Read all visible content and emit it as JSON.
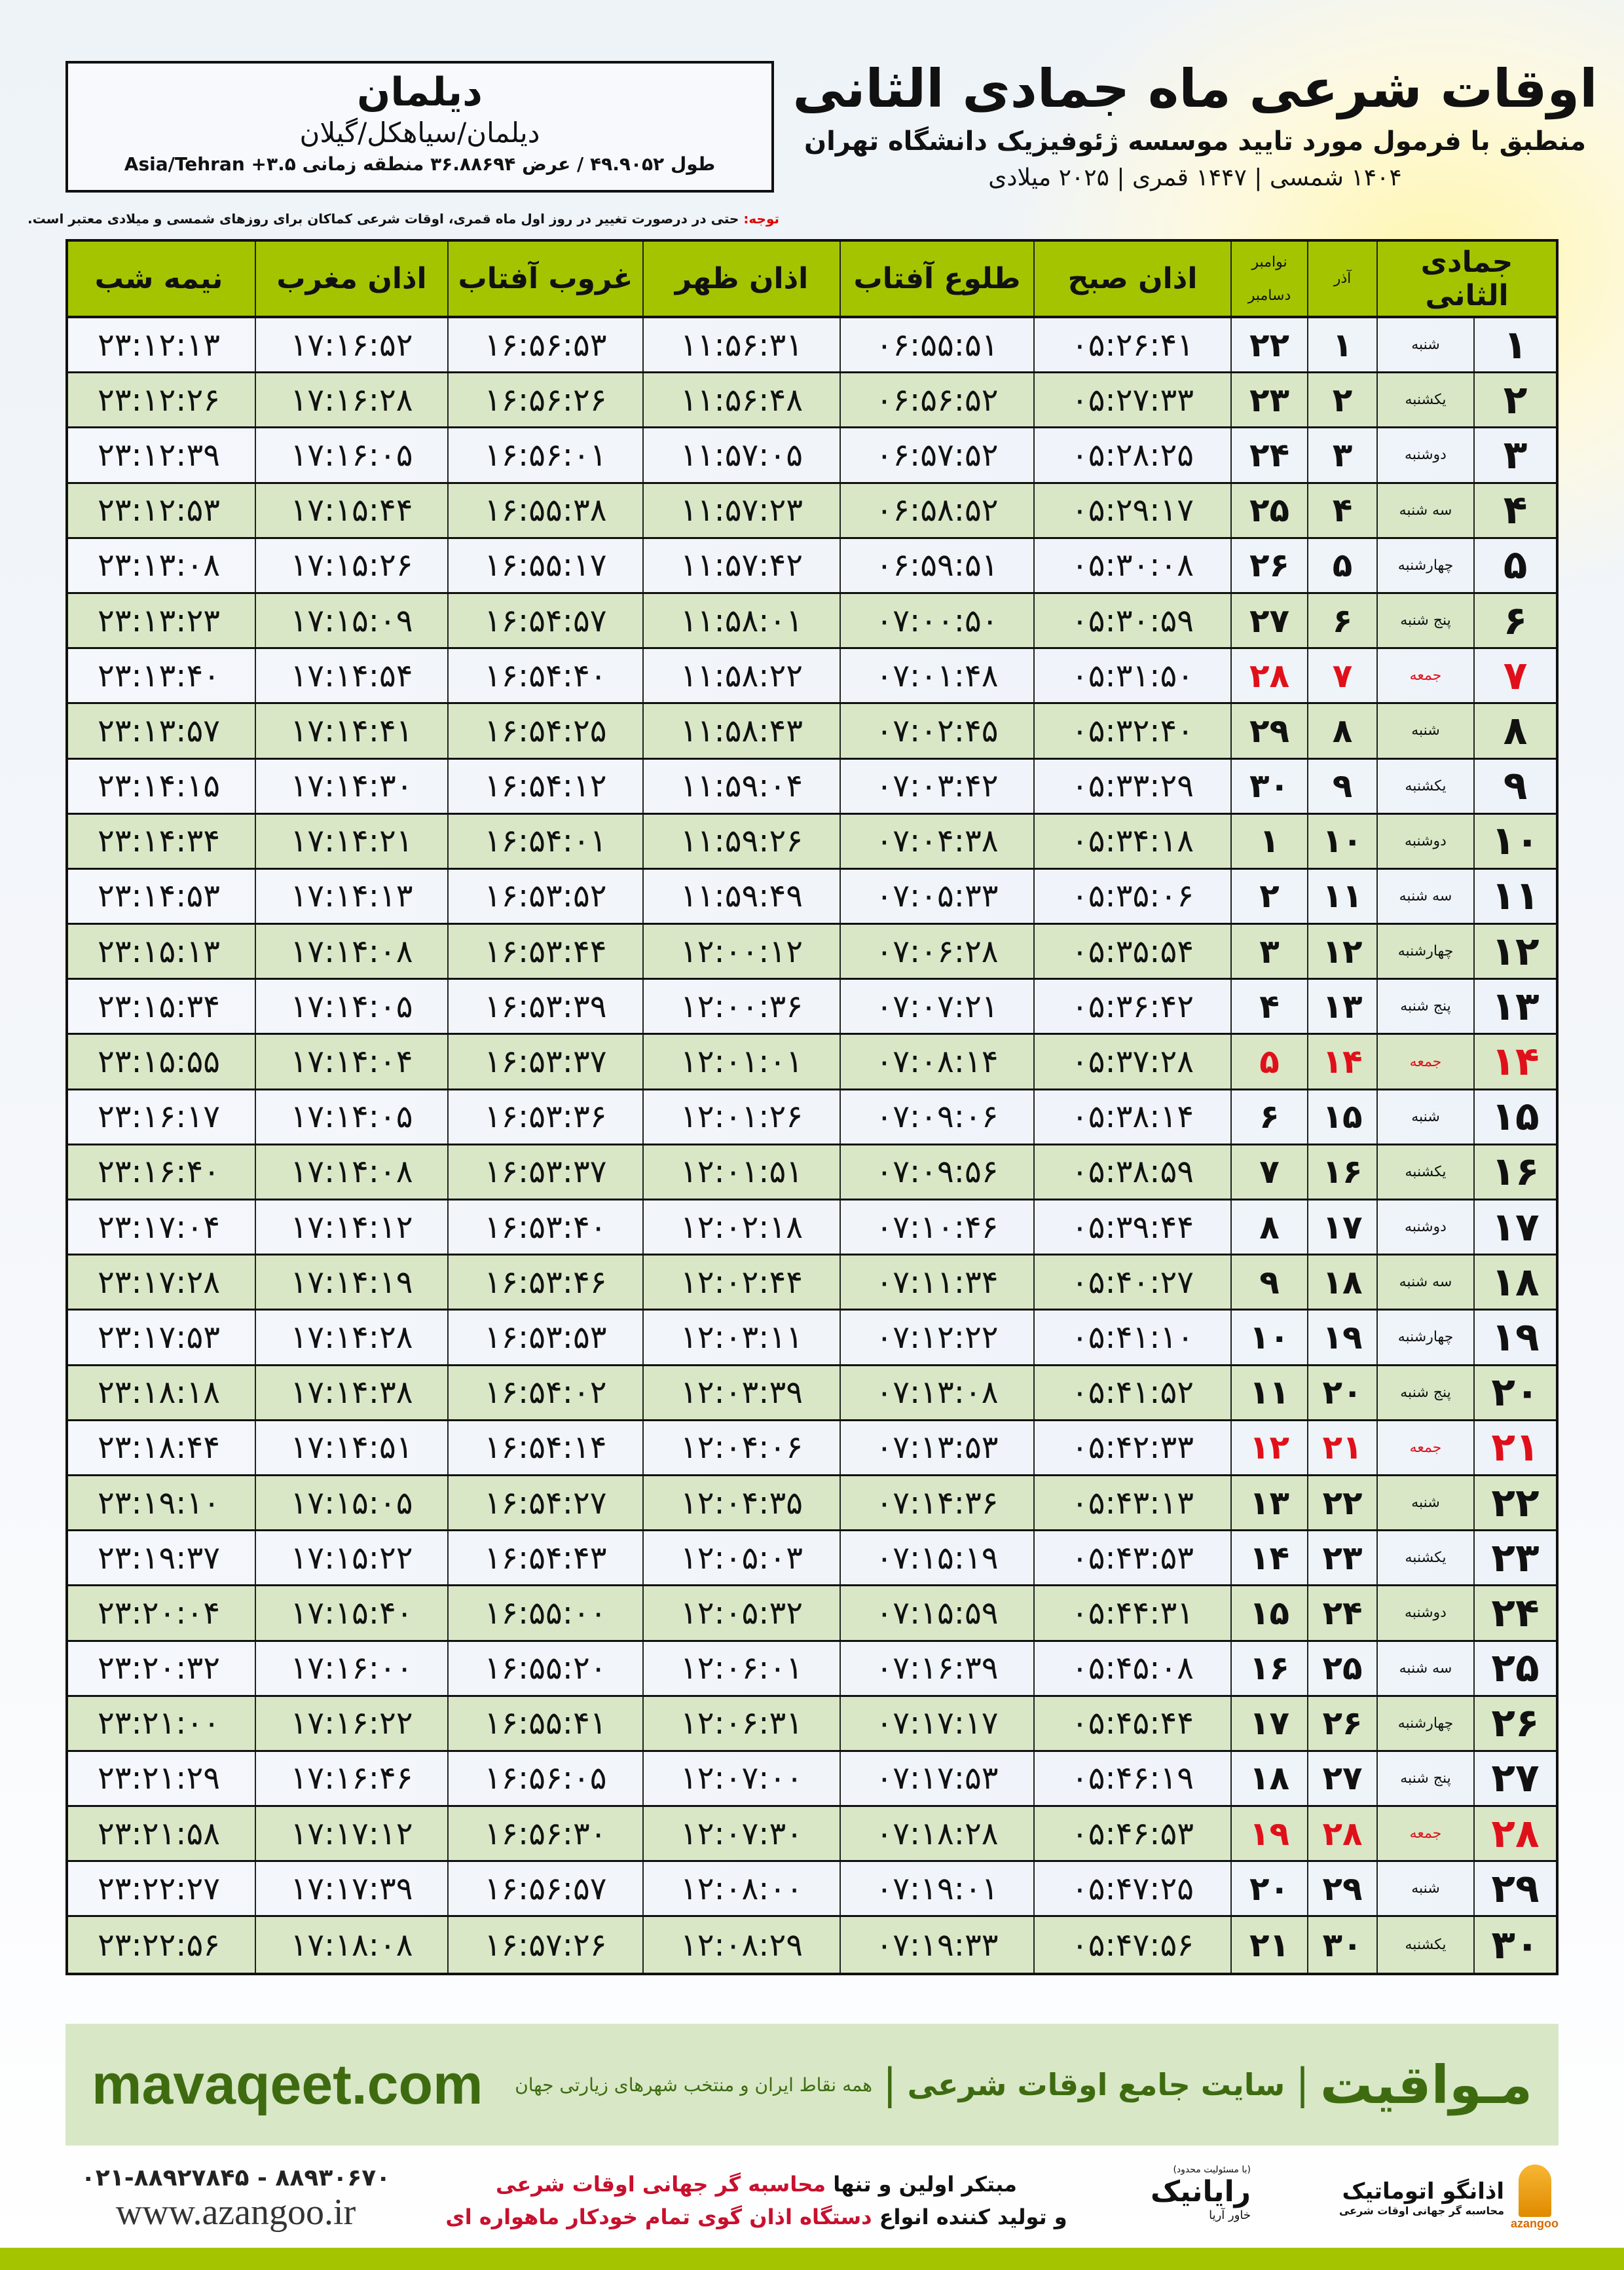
{
  "location": {
    "city": "دیلمان",
    "region": "دیلمان/سیاهکل/گیلان",
    "coords": "طول ۴۹.۹۰۵۲ / عرض ۳۶.۸۸۶۹۴ منطقه زمانی ۳.۵+ Asia/Tehran"
  },
  "title": {
    "main": "اوقات شرعی ماه جمادی الثانی",
    "sub": "منطبق با فرمول مورد تایید موسسه ژئوفیزیک دانشگاه تهران",
    "years": "۱۴۰۴ شمسی | ۱۴۴۷ قمری | ۲۰۲۵ میلادی"
  },
  "note": {
    "label": "توجه:",
    "text": " حتی در درصورت تغییر در روز اول ماه قمری، اوقات شرعی کماکان برای روزهای شمسی و میلادی معتبر است."
  },
  "table": {
    "headers": {
      "hijri": "جمادی الثانی",
      "azar": "آذر",
      "gregorian_top": "نوامبر",
      "gregorian_bottom": "دسامبر",
      "fajr": "اذان صبح",
      "sunrise": "طلوع آفتاب",
      "dhuhr": "اذان ظهر",
      "sunset": "غروب آفتاب",
      "maghrib": "اذان مغرب",
      "midnight": "نیمه شب"
    },
    "rows": [
      [
        "۱",
        "شنبه",
        "۱",
        "۲۲",
        "۰۵:۲۶:۴۱",
        "۰۶:۵۵:۵۱",
        "۱۱:۵۶:۳۱",
        "۱۶:۵۶:۵۳",
        "۱۷:۱۶:۵۲",
        "۲۳:۱۲:۱۳",
        false
      ],
      [
        "۲",
        "یکشنبه",
        "۲",
        "۲۳",
        "۰۵:۲۷:۳۳",
        "۰۶:۵۶:۵۲",
        "۱۱:۵۶:۴۸",
        "۱۶:۵۶:۲۶",
        "۱۷:۱۶:۲۸",
        "۲۳:۱۲:۲۶",
        false
      ],
      [
        "۳",
        "دوشنبه",
        "۳",
        "۲۴",
        "۰۵:۲۸:۲۵",
        "۰۶:۵۷:۵۲",
        "۱۱:۵۷:۰۵",
        "۱۶:۵۶:۰۱",
        "۱۷:۱۶:۰۵",
        "۲۳:۱۲:۳۹",
        false
      ],
      [
        "۴",
        "سه شنبه",
        "۴",
        "۲۵",
        "۰۵:۲۹:۱۷",
        "۰۶:۵۸:۵۲",
        "۱۱:۵۷:۲۳",
        "۱۶:۵۵:۳۸",
        "۱۷:۱۵:۴۴",
        "۲۳:۱۲:۵۳",
        false
      ],
      [
        "۵",
        "چهارشنبه",
        "۵",
        "۲۶",
        "۰۵:۳۰:۰۸",
        "۰۶:۵۹:۵۱",
        "۱۱:۵۷:۴۲",
        "۱۶:۵۵:۱۷",
        "۱۷:۱۵:۲۶",
        "۲۳:۱۳:۰۸",
        false
      ],
      [
        "۶",
        "پنج شنبه",
        "۶",
        "۲۷",
        "۰۵:۳۰:۵۹",
        "۰۷:۰۰:۵۰",
        "۱۱:۵۸:۰۱",
        "۱۶:۵۴:۵۷",
        "۱۷:۱۵:۰۹",
        "۲۳:۱۳:۲۳",
        false
      ],
      [
        "۷",
        "جمعه",
        "۷",
        "۲۸",
        "۰۵:۳۱:۵۰",
        "۰۷:۰۱:۴۸",
        "۱۱:۵۸:۲۲",
        "۱۶:۵۴:۴۰",
        "۱۷:۱۴:۵۴",
        "۲۳:۱۳:۴۰",
        true
      ],
      [
        "۸",
        "شنبه",
        "۸",
        "۲۹",
        "۰۵:۳۲:۴۰",
        "۰۷:۰۲:۴۵",
        "۱۱:۵۸:۴۳",
        "۱۶:۵۴:۲۵",
        "۱۷:۱۴:۴۱",
        "۲۳:۱۳:۵۷",
        false
      ],
      [
        "۹",
        "یکشنبه",
        "۹",
        "۳۰",
        "۰۵:۳۳:۲۹",
        "۰۷:۰۳:۴۲",
        "۱۱:۵۹:۰۴",
        "۱۶:۵۴:۱۲",
        "۱۷:۱۴:۳۰",
        "۲۳:۱۴:۱۵",
        false
      ],
      [
        "۱۰",
        "دوشنبه",
        "۱۰",
        "۱",
        "۰۵:۳۴:۱۸",
        "۰۷:۰۴:۳۸",
        "۱۱:۵۹:۲۶",
        "۱۶:۵۴:۰۱",
        "۱۷:۱۴:۲۱",
        "۲۳:۱۴:۳۴",
        false
      ],
      [
        "۱۱",
        "سه شنبه",
        "۱۱",
        "۲",
        "۰۵:۳۵:۰۶",
        "۰۷:۰۵:۳۳",
        "۱۱:۵۹:۴۹",
        "۱۶:۵۳:۵۲",
        "۱۷:۱۴:۱۳",
        "۲۳:۱۴:۵۳",
        false
      ],
      [
        "۱۲",
        "چهارشنبه",
        "۱۲",
        "۳",
        "۰۵:۳۵:۵۴",
        "۰۷:۰۶:۲۸",
        "۱۲:۰۰:۱۲",
        "۱۶:۵۳:۴۴",
        "۱۷:۱۴:۰۸",
        "۲۳:۱۵:۱۳",
        false
      ],
      [
        "۱۳",
        "پنج شنبه",
        "۱۳",
        "۴",
        "۰۵:۳۶:۴۲",
        "۰۷:۰۷:۲۱",
        "۱۲:۰۰:۳۶",
        "۱۶:۵۳:۳۹",
        "۱۷:۱۴:۰۵",
        "۲۳:۱۵:۳۴",
        false
      ],
      [
        "۱۴",
        "جمعه",
        "۱۴",
        "۵",
        "۰۵:۳۷:۲۸",
        "۰۷:۰۸:۱۴",
        "۱۲:۰۱:۰۱",
        "۱۶:۵۳:۳۷",
        "۱۷:۱۴:۰۴",
        "۲۳:۱۵:۵۵",
        true
      ],
      [
        "۱۵",
        "شنبه",
        "۱۵",
        "۶",
        "۰۵:۳۸:۱۴",
        "۰۷:۰۹:۰۶",
        "۱۲:۰۱:۲۶",
        "۱۶:۵۳:۳۶",
        "۱۷:۱۴:۰۵",
        "۲۳:۱۶:۱۷",
        false
      ],
      [
        "۱۶",
        "یکشنبه",
        "۱۶",
        "۷",
        "۰۵:۳۸:۵۹",
        "۰۷:۰۹:۵۶",
        "۱۲:۰۱:۵۱",
        "۱۶:۵۳:۳۷",
        "۱۷:۱۴:۰۸",
        "۲۳:۱۶:۴۰",
        false
      ],
      [
        "۱۷",
        "دوشنبه",
        "۱۷",
        "۸",
        "۰۵:۳۹:۴۴",
        "۰۷:۱۰:۴۶",
        "۱۲:۰۲:۱۸",
        "۱۶:۵۳:۴۰",
        "۱۷:۱۴:۱۲",
        "۲۳:۱۷:۰۴",
        false
      ],
      [
        "۱۸",
        "سه شنبه",
        "۱۸",
        "۹",
        "۰۵:۴۰:۲۷",
        "۰۷:۱۱:۳۴",
        "۱۲:۰۲:۴۴",
        "۱۶:۵۳:۴۶",
        "۱۷:۱۴:۱۹",
        "۲۳:۱۷:۲۸",
        false
      ],
      [
        "۱۹",
        "چهارشنبه",
        "۱۹",
        "۱۰",
        "۰۵:۴۱:۱۰",
        "۰۷:۱۲:۲۲",
        "۱۲:۰۳:۱۱",
        "۱۶:۵۳:۵۳",
        "۱۷:۱۴:۲۸",
        "۲۳:۱۷:۵۳",
        false
      ],
      [
        "۲۰",
        "پنج شنبه",
        "۲۰",
        "۱۱",
        "۰۵:۴۱:۵۲",
        "۰۷:۱۳:۰۸",
        "۱۲:۰۳:۳۹",
        "۱۶:۵۴:۰۲",
        "۱۷:۱۴:۳۸",
        "۲۳:۱۸:۱۸",
        false
      ],
      [
        "۲۱",
        "جمعه",
        "۲۱",
        "۱۲",
        "۰۵:۴۲:۳۳",
        "۰۷:۱۳:۵۳",
        "۱۲:۰۴:۰۶",
        "۱۶:۵۴:۱۴",
        "۱۷:۱۴:۵۱",
        "۲۳:۱۸:۴۴",
        true
      ],
      [
        "۲۲",
        "شنبه",
        "۲۲",
        "۱۳",
        "۰۵:۴۳:۱۳",
        "۰۷:۱۴:۳۶",
        "۱۲:۰۴:۳۵",
        "۱۶:۵۴:۲۷",
        "۱۷:۱۵:۰۵",
        "۲۳:۱۹:۱۰",
        false
      ],
      [
        "۲۳",
        "یکشنبه",
        "۲۳",
        "۱۴",
        "۰۵:۴۳:۵۳",
        "۰۷:۱۵:۱۹",
        "۱۲:۰۵:۰۳",
        "۱۶:۵۴:۴۳",
        "۱۷:۱۵:۲۲",
        "۲۳:۱۹:۳۷",
        false
      ],
      [
        "۲۴",
        "دوشنبه",
        "۲۴",
        "۱۵",
        "۰۵:۴۴:۳۱",
        "۰۷:۱۵:۵۹",
        "۱۲:۰۵:۳۲",
        "۱۶:۵۵:۰۰",
        "۱۷:۱۵:۴۰",
        "۲۳:۲۰:۰۴",
        false
      ],
      [
        "۲۵",
        "سه شنبه",
        "۲۵",
        "۱۶",
        "۰۵:۴۵:۰۸",
        "۰۷:۱۶:۳۹",
        "۱۲:۰۶:۰۱",
        "۱۶:۵۵:۲۰",
        "۱۷:۱۶:۰۰",
        "۲۳:۲۰:۳۲",
        false
      ],
      [
        "۲۶",
        "چهارشنبه",
        "۲۶",
        "۱۷",
        "۰۵:۴۵:۴۴",
        "۰۷:۱۷:۱۷",
        "۱۲:۰۶:۳۱",
        "۱۶:۵۵:۴۱",
        "۱۷:۱۶:۲۲",
        "۲۳:۲۱:۰۰",
        false
      ],
      [
        "۲۷",
        "پنج شنبه",
        "۲۷",
        "۱۸",
        "۰۵:۴۶:۱۹",
        "۰۷:۱۷:۵۳",
        "۱۲:۰۷:۰۰",
        "۱۶:۵۶:۰۵",
        "۱۷:۱۶:۴۶",
        "۲۳:۲۱:۲۹",
        false
      ],
      [
        "۲۸",
        "جمعه",
        "۲۸",
        "۱۹",
        "۰۵:۴۶:۵۳",
        "۰۷:۱۸:۲۸",
        "۱۲:۰۷:۳۰",
        "۱۶:۵۶:۳۰",
        "۱۷:۱۷:۱۲",
        "۲۳:۲۱:۵۸",
        true
      ],
      [
        "۲۹",
        "شنبه",
        "۲۹",
        "۲۰",
        "۰۵:۴۷:۲۵",
        "۰۷:۱۹:۰۱",
        "۱۲:۰۸:۰۰",
        "۱۶:۵۶:۵۷",
        "۱۷:۱۷:۳۹",
        "۲۳:۲۲:۲۷",
        false
      ],
      [
        "۳۰",
        "یکشنبه",
        "۳۰",
        "۲۱",
        "۰۵:۴۷:۵۶",
        "۰۷:۱۹:۳۳",
        "۱۲:۰۸:۲۹",
        "۱۶:۵۷:۲۶",
        "۱۷:۱۸:۰۸",
        "۲۳:۲۲:۵۶",
        false
      ]
    ]
  },
  "footer": {
    "brand": "مـواقیت",
    "slogan": "سایت جامع اوقات شرعی",
    "slogan2": "همه نقاط ایران و منتخب شهرهای زیارتی جهان",
    "site": "mavaqeet.com"
  },
  "ads": {
    "logo1_name": "اذانگو اتوماتیک",
    "logo1_sub": "محاسبه گر جهانی اوقات شرعی",
    "logo1_en": "azangoo",
    "logo2_note": "(با مسئولیت محدود)",
    "logo2_name": "رایانیک",
    "logo2_sub": "خاور آریا",
    "line1_a": "مبتکر اولین و تنها ",
    "line1_b": "محاسبه گر جهانی اوقات شرعی",
    "line2_a": "و تولید کننده انواع ",
    "line2_b": "دستگاه اذان گوی تمام خودکار ماهواره ای",
    "phone": "۰۲۱-۸۸۹۲۷۸۴۵ - ۸۸۹۳۰۶۷۰",
    "web": "www.azangoo.ir"
  },
  "colors": {
    "header_green": "#a5c400",
    "row_green": "#d9e7c6",
    "friday_red": "#e0101a",
    "footer_green": "#d8e8c6",
    "brand_green": "#3e6b10"
  }
}
